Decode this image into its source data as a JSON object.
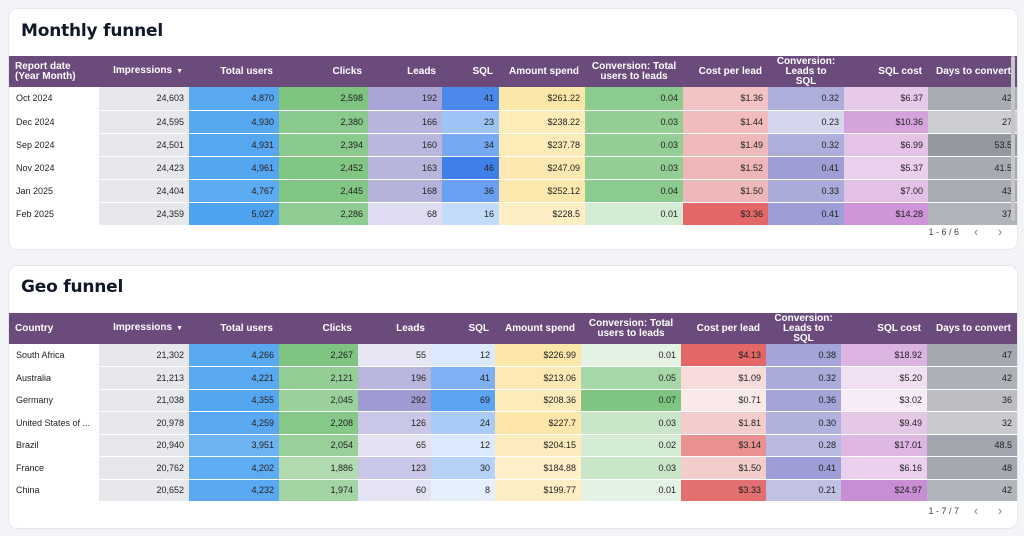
{
  "columns": {
    "first_monthly": "Report date (Year Month)",
    "first_geo": "Country",
    "impressions": "Impressions",
    "total_users": "Total users",
    "clicks": "Clicks",
    "leads": "Leads",
    "sql": "SQL",
    "amount_spend": "Amount spend",
    "conv_users_leads": "Conversion: Total users to leads",
    "cost_per_lead": "Cost per lead",
    "conv_leads_sql": "Conversion: Leads to SQL",
    "sql_cost": "SQL cost",
    "days_to_convert": "Days to convert"
  },
  "monthly": {
    "title": "Monthly funnel",
    "pager": "1 - 6 / 6",
    "rows": [
      {
        "label": "Oct 2024",
        "impressions": "24,603",
        "users": "4,870",
        "clicks": "2,598",
        "leads": "192",
        "sql": "41",
        "spend": "$261.22",
        "conv1": "0.04",
        "cpl": "$1.36",
        "conv2": "0.32",
        "sqlcost": "$6.37",
        "days": "42"
      },
      {
        "label": "Dec 2024",
        "impressions": "24,595",
        "users": "4,930",
        "clicks": "2,380",
        "leads": "166",
        "sql": "23",
        "spend": "$238.22",
        "conv1": "0.03",
        "cpl": "$1.44",
        "conv2": "0.23",
        "sqlcost": "$10.36",
        "days": "27"
      },
      {
        "label": "Sep 2024",
        "impressions": "24,501",
        "users": "4,931",
        "clicks": "2,394",
        "leads": "160",
        "sql": "34",
        "spend": "$237.78",
        "conv1": "0.03",
        "cpl": "$1.49",
        "conv2": "0.32",
        "sqlcost": "$6.99",
        "days": "53.5"
      },
      {
        "label": "Nov 2024",
        "impressions": "24,423",
        "users": "4,961",
        "clicks": "2,452",
        "leads": "163",
        "sql": "46",
        "spend": "$247.09",
        "conv1": "0.03",
        "cpl": "$1.52",
        "conv2": "0.41",
        "sqlcost": "$5.37",
        "days": "41.5"
      },
      {
        "label": "Jan 2025",
        "impressions": "24,404",
        "users": "4,767",
        "clicks": "2,445",
        "leads": "168",
        "sql": "36",
        "spend": "$252.12",
        "conv1": "0.04",
        "cpl": "$1.50",
        "conv2": "0.33",
        "sqlcost": "$7.00",
        "days": "43"
      },
      {
        "label": "Feb 2025",
        "impressions": "24,359",
        "users": "5,027",
        "clicks": "2,286",
        "leads": "68",
        "sql": "16",
        "spend": "$228.5",
        "conv1": "0.01",
        "cpl": "$3.36",
        "conv2": "0.41",
        "sqlcost": "$14.28",
        "days": "37"
      }
    ],
    "colors": [
      [
        "#e6e8ec",
        "#5aa9f0",
        "#7dc47f",
        "#a9a5d6",
        "#4a88ea",
        "#fbe7a8",
        "#8ccb8e",
        "#f3c2c2",
        "#aeaedd",
        "#e7c9ea",
        "#a9acb4"
      ],
      [
        "#e6e8ec",
        "#58a8f0",
        "#8bca8d",
        "#b7b4dd",
        "#9ec3f6",
        "#fdebb8",
        "#93ce95",
        "#f0bcbc",
        "#d6d5ee",
        "#d5a3dc",
        "#ccced3"
      ],
      [
        "#e6e8ec",
        "#57a7f0",
        "#89c98b",
        "#bab7de",
        "#77a9f2",
        "#fdebb8",
        "#93ce95",
        "#efb9b9",
        "#aeaedd",
        "#e4c3e7",
        "#94989f"
      ],
      [
        "#e6e8ec",
        "#55a6f0",
        "#81c683",
        "#b8b5dd",
        "#3f7fe8",
        "#fce9b1",
        "#93ce95",
        "#eeb6b6",
        "#9d9ed6",
        "#ebd0ed",
        "#a7aab2"
      ],
      [
        "#e6e8ec",
        "#5dabf1",
        "#81c683",
        "#b5b2dc",
        "#6aa0f1",
        "#fce8ad",
        "#8ccb8e",
        "#efb8b8",
        "#aaabdb",
        "#e3c1e6",
        "#a8abb2"
      ],
      [
        "#e6e8ec",
        "#4ea2ef",
        "#8fcc91",
        "#dedcf0",
        "#c3dbfa",
        "#fdeec3",
        "#d5ecd4",
        "#e36767",
        "#9d9ed6",
        "#cf95d8",
        "#b1b3ba"
      ]
    ]
  },
  "geo": {
    "title": "Geo funnel",
    "pager": "1 - 7 / 7",
    "rows": [
      {
        "label": "South Africa",
        "impressions": "21,302",
        "users": "4,266",
        "clicks": "2,267",
        "leads": "55",
        "sql": "12",
        "spend": "$226.99",
        "conv1": "0.01",
        "cpl": "$4.13",
        "conv2": "0.38",
        "sqlcost": "$18.92",
        "days": "47"
      },
      {
        "label": "Australia",
        "impressions": "21,213",
        "users": "4,221",
        "clicks": "2,121",
        "leads": "196",
        "sql": "41",
        "spend": "$213.06",
        "conv1": "0.05",
        "cpl": "$1.09",
        "conv2": "0.32",
        "sqlcost": "$5.20",
        "days": "42"
      },
      {
        "label": "Germany",
        "impressions": "21,038",
        "users": "4,355",
        "clicks": "2,045",
        "leads": "292",
        "sql": "69",
        "spend": "$208.36",
        "conv1": "0.07",
        "cpl": "$0.71",
        "conv2": "0.36",
        "sqlcost": "$3.02",
        "days": "36"
      },
      {
        "label": "United States of ...",
        "impressions": "20,978",
        "users": "4,259",
        "clicks": "2,208",
        "leads": "126",
        "sql": "24",
        "spend": "$227.7",
        "conv1": "0.03",
        "cpl": "$1.81",
        "conv2": "0.30",
        "sqlcost": "$9.49",
        "days": "32"
      },
      {
        "label": "Brazil",
        "impressions": "20,940",
        "users": "3,951",
        "clicks": "2,054",
        "leads": "65",
        "sql": "12",
        "spend": "$204.15",
        "conv1": "0.02",
        "cpl": "$3.14",
        "conv2": "0.28",
        "sqlcost": "$17.01",
        "days": "48.5"
      },
      {
        "label": "France",
        "impressions": "20,762",
        "users": "4,202",
        "clicks": "1,886",
        "leads": "123",
        "sql": "30",
        "spend": "$184.88",
        "conv1": "0.03",
        "cpl": "$1.50",
        "conv2": "0.41",
        "sqlcost": "$6.16",
        "days": "48"
      },
      {
        "label": "China",
        "impressions": "20,652",
        "users": "4,232",
        "clicks": "1,974",
        "leads": "60",
        "sql": "8",
        "spend": "$199.77",
        "conv1": "0.01",
        "cpl": "$3.33",
        "conv2": "0.21",
        "sqlcost": "$24.97",
        "days": "42"
      }
    ],
    "colors": [
      [
        "#e6e8ec",
        "#5aa9f0",
        "#7fc581",
        "#e7e6f4",
        "#dbe9fc",
        "#fce6a9",
        "#e3f2e2",
        "#e36767",
        "#a3a4d8",
        "#dcb4e1",
        "#a5a8b0"
      ],
      [
        "#e6e8ec",
        "#5aa9f0",
        "#93ce95",
        "#b9b6de",
        "#7eb0f3",
        "#fde9b4",
        "#a6d7a8",
        "#f7dada",
        "#aaabdb",
        "#f1dff2",
        "#adb0b7"
      ],
      [
        "#e6e8ec",
        "#55a6f0",
        "#9ad19b",
        "#9e9ad2",
        "#5aa4f1",
        "#fdebba",
        "#7fc581",
        "#fae9e9",
        "#a3a4d8",
        "#f6ebf7",
        "#bbbdc3"
      ],
      [
        "#e6e8ec",
        "#5aa9f0",
        "#86c888",
        "#c9c7e7",
        "#a9ccf7",
        "#fce6a9",
        "#c9e6c9",
        "#f3cccc",
        "#b0b1dd",
        "#e5c8e8",
        "#c8cacf"
      ],
      [
        "#e6e8ec",
        "#6db3f2",
        "#98d09a",
        "#e3e1f2",
        "#dbe9fc",
        "#fdecbd",
        "#d4ebd3",
        "#e99191",
        "#b9b9e1",
        "#ddb6e2",
        "#a3a6ae"
      ],
      [
        "#e6e8ec",
        "#5eacf1",
        "#b0dbb1",
        "#c9c7e7",
        "#b5d3f8",
        "#fff0cb",
        "#c9e6c9",
        "#f3cccc",
        "#9d9ed6",
        "#ead0ec",
        "#a4a7af"
      ],
      [
        "#e6e8ec",
        "#5aa9f0",
        "#a3d5a4",
        "#e4e3f3",
        "#e6f0fd",
        "#fdeec3",
        "#e3f2e2",
        "#e37070",
        "#c1c1e4",
        "#c98dd3",
        "#b2b4bb"
      ]
    ]
  }
}
